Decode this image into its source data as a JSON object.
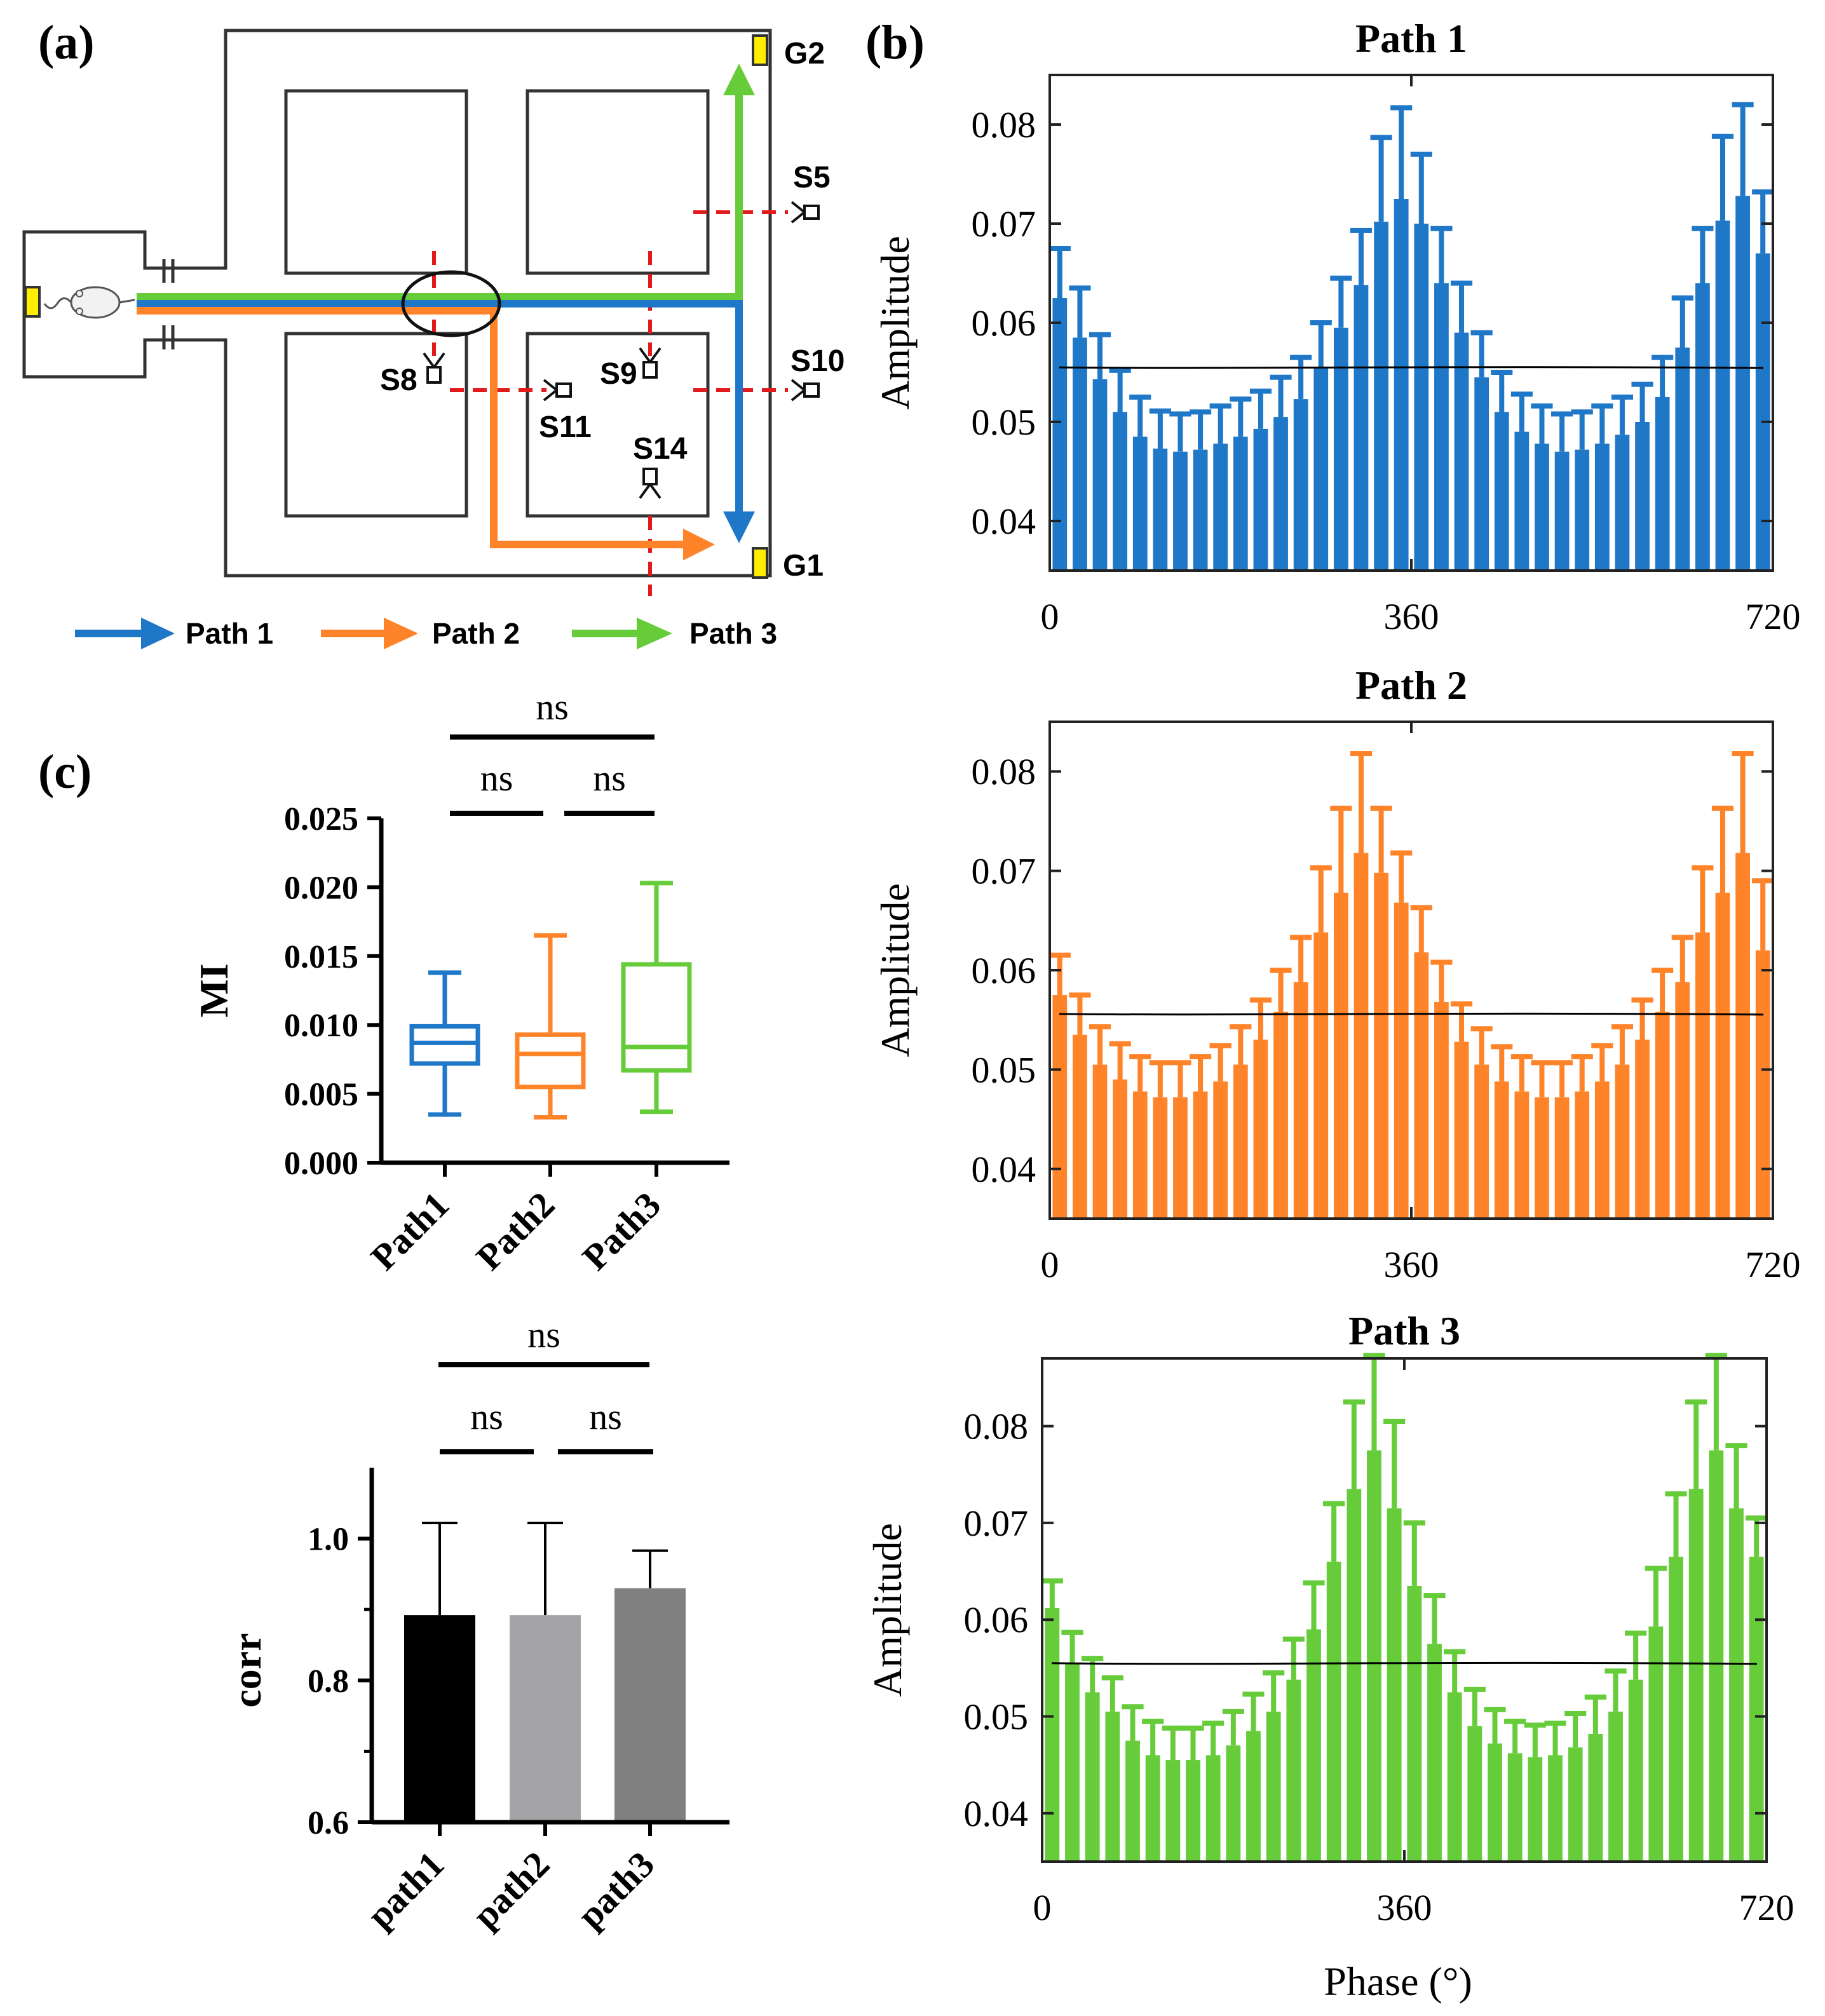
{
  "panel_labels": {
    "a": "(a)",
    "b": "(b)",
    "c": "(c)"
  },
  "colors": {
    "path1": "#1f77c8",
    "path2": "#ff8328",
    "path3": "#66cc3a",
    "goal": "#ffee00",
    "sensor_line": "#e31a1c",
    "black": "#000000",
    "bar_path1": "#000000",
    "bar_path2": "#a4a4a7",
    "bar_path3": "#808080"
  },
  "maze": {
    "goals": {
      "g1": "G1",
      "g2": "G2"
    },
    "sensors": {
      "s5": "S5",
      "s8": "S8",
      "s9": "S9",
      "s10": "S10",
      "s11": "S11",
      "s14": "S14"
    },
    "legend": [
      {
        "label": "Path 1",
        "color": "#1f77c8"
      },
      {
        "label": "Path 2",
        "color": "#ff8328"
      },
      {
        "label": "Path 3",
        "color": "#66cc3a"
      }
    ],
    "icons": [
      "mouse-icon",
      "sensor-icon",
      "arrow-icon"
    ]
  },
  "chart_data": [
    {
      "type": "bar",
      "id": "path1-phase",
      "title": "Path 1",
      "xlabel": "",
      "ylabel": "Amplitude",
      "xlim": [
        0,
        720
      ],
      "ylim": [
        0.035,
        0.085
      ],
      "xticks": [
        "0",
        "360",
        "720"
      ],
      "yticks": [
        "0.04",
        "0.05",
        "0.06",
        "0.07",
        "0.08"
      ],
      "x": [
        10,
        30,
        50,
        70,
        90,
        110,
        130,
        150,
        170,
        190,
        210,
        230,
        250,
        270,
        290,
        310,
        330,
        350,
        370,
        390,
        410,
        430,
        450,
        470,
        490,
        510,
        530,
        550,
        570,
        590,
        610,
        630,
        650,
        670,
        690,
        710
      ],
      "values": [
        0.0625,
        0.0585,
        0.0543,
        0.051,
        0.0485,
        0.0473,
        0.047,
        0.0472,
        0.0478,
        0.0485,
        0.0493,
        0.0505,
        0.0523,
        0.0555,
        0.0595,
        0.0638,
        0.0702,
        0.0725,
        0.07,
        0.064,
        0.059,
        0.0545,
        0.051,
        0.049,
        0.0478,
        0.047,
        0.0472,
        0.0478,
        0.0487,
        0.05,
        0.0525,
        0.0575,
        0.064,
        0.0703,
        0.0728,
        0.067
      ],
      "errors": [
        0.005,
        0.005,
        0.0045,
        0.0042,
        0.004,
        0.0038,
        0.0038,
        0.0038,
        0.0038,
        0.0038,
        0.0038,
        0.004,
        0.0042,
        0.0045,
        0.005,
        0.0055,
        0.0085,
        0.0092,
        0.007,
        0.0055,
        0.005,
        0.0045,
        0.004,
        0.0038,
        0.0038,
        0.0038,
        0.0038,
        0.0038,
        0.0038,
        0.0038,
        0.004,
        0.005,
        0.0055,
        0.0085,
        0.0092,
        0.0062
      ],
      "reference_line": 0.0555,
      "color": "#1f77c8"
    },
    {
      "type": "bar",
      "id": "path2-phase",
      "title": "Path 2",
      "xlabel": "",
      "ylabel": "Amplitude",
      "xlim": [
        0,
        720
      ],
      "ylim": [
        0.035,
        0.085
      ],
      "xticks": [
        "0",
        "360",
        "720"
      ],
      "yticks": [
        "0.04",
        "0.05",
        "0.06",
        "0.07",
        "0.08"
      ],
      "x": [
        10,
        30,
        50,
        70,
        90,
        110,
        130,
        150,
        170,
        190,
        210,
        230,
        250,
        270,
        290,
        310,
        330,
        350,
        370,
        390,
        410,
        430,
        450,
        470,
        490,
        510,
        530,
        550,
        570,
        590,
        610,
        630,
        650,
        670,
        690,
        710
      ],
      "values": [
        0.0575,
        0.0535,
        0.0505,
        0.049,
        0.0478,
        0.0472,
        0.0472,
        0.0478,
        0.0488,
        0.0505,
        0.053,
        0.0558,
        0.0588,
        0.0638,
        0.0678,
        0.0718,
        0.0698,
        0.0668,
        0.0618,
        0.0568,
        0.0528,
        0.0505,
        0.0488,
        0.0478,
        0.0472,
        0.0472,
        0.0478,
        0.0488,
        0.0505,
        0.053,
        0.0558,
        0.0588,
        0.0638,
        0.0678,
        0.0718,
        0.062
      ],
      "errors": [
        0.004,
        0.004,
        0.0038,
        0.0036,
        0.0035,
        0.0035,
        0.0035,
        0.0035,
        0.0036,
        0.0038,
        0.004,
        0.0042,
        0.0045,
        0.0065,
        0.0085,
        0.01,
        0.0065,
        0.005,
        0.0045,
        0.004,
        0.0038,
        0.0036,
        0.0035,
        0.0035,
        0.0035,
        0.0035,
        0.0035,
        0.0036,
        0.0038,
        0.004,
        0.0042,
        0.0045,
        0.0065,
        0.0085,
        0.01,
        0.007
      ],
      "reference_line": 0.0556,
      "color": "#ff8328"
    },
    {
      "type": "bar",
      "id": "path3-phase",
      "title": "Path 3",
      "xlabel": "Phase (°)",
      "ylabel": "Amplitude",
      "xlim": [
        0,
        720
      ],
      "ylim": [
        0.035,
        0.087
      ],
      "xticks": [
        "0",
        "360",
        "720"
      ],
      "yticks": [
        "0.04",
        "0.05",
        "0.06",
        "0.07",
        "0.08"
      ],
      "x": [
        10,
        30,
        50,
        70,
        90,
        110,
        130,
        150,
        170,
        190,
        210,
        230,
        250,
        270,
        290,
        310,
        330,
        350,
        370,
        390,
        410,
        430,
        450,
        470,
        490,
        510,
        530,
        550,
        570,
        590,
        610,
        630,
        650,
        670,
        690,
        710
      ],
      "values": [
        0.0612,
        0.0555,
        0.0525,
        0.0505,
        0.0475,
        0.046,
        0.0455,
        0.0455,
        0.046,
        0.047,
        0.0485,
        0.0505,
        0.0538,
        0.059,
        0.066,
        0.0735,
        0.0775,
        0.0715,
        0.0635,
        0.0575,
        0.0525,
        0.049,
        0.0472,
        0.0462,
        0.0458,
        0.046,
        0.0468,
        0.0482,
        0.0505,
        0.0538,
        0.0593,
        0.0665,
        0.0735,
        0.0775,
        0.0715,
        0.0665
      ],
      "errors": [
        0.0028,
        0.0032,
        0.0035,
        0.0035,
        0.0035,
        0.0035,
        0.0033,
        0.0033,
        0.0033,
        0.0035,
        0.0038,
        0.004,
        0.0042,
        0.0048,
        0.006,
        0.009,
        0.0098,
        0.009,
        0.0065,
        0.005,
        0.0042,
        0.0038,
        0.0035,
        0.0033,
        0.0033,
        0.0033,
        0.0035,
        0.0038,
        0.0042,
        0.0048,
        0.006,
        0.0065,
        0.009,
        0.0098,
        0.0065,
        0.004
      ],
      "reference_line": 0.0555,
      "color": "#66cc3a"
    },
    {
      "type": "box",
      "id": "mi-box",
      "title": "",
      "xlabel": "",
      "ylabel": "MI",
      "ylim": [
        0.0,
        0.025
      ],
      "yticks": [
        "0.000",
        "0.005",
        "0.010",
        "0.015",
        "0.020",
        "0.025"
      ],
      "categories": [
        "Path1",
        "Path2",
        "Path3"
      ],
      "boxes": [
        {
          "min": 0.0035,
          "q1": 0.0072,
          "median": 0.0087,
          "q3": 0.0099,
          "max": 0.0138,
          "color": "#1f77c8"
        },
        {
          "min": 0.0033,
          "q1": 0.0055,
          "median": 0.0079,
          "q3": 0.0093,
          "max": 0.0165,
          "color": "#ff8328"
        },
        {
          "min": 0.0037,
          "q1": 0.0067,
          "median": 0.0084,
          "q3": 0.0144,
          "max": 0.0203,
          "color": "#66cc3a"
        }
      ],
      "annotations": {
        "top": "ns",
        "left": "ns",
        "right": "ns"
      }
    },
    {
      "type": "bar",
      "id": "corr-bar",
      "title": "",
      "xlabel": "",
      "ylabel": "corr",
      "ylim": [
        0.6,
        1.1
      ],
      "yticks": [
        "0.6",
        "0.8",
        "1.0"
      ],
      "categories": [
        "path1",
        "path2",
        "path3"
      ],
      "values": [
        0.892,
        0.892,
        0.93
      ],
      "errors": [
        0.13,
        0.13,
        0.053
      ],
      "colors": [
        "#000000",
        "#a4a4a7",
        "#808080"
      ],
      "annotations": {
        "top": "ns",
        "left": "ns",
        "right": "ns"
      }
    }
  ]
}
